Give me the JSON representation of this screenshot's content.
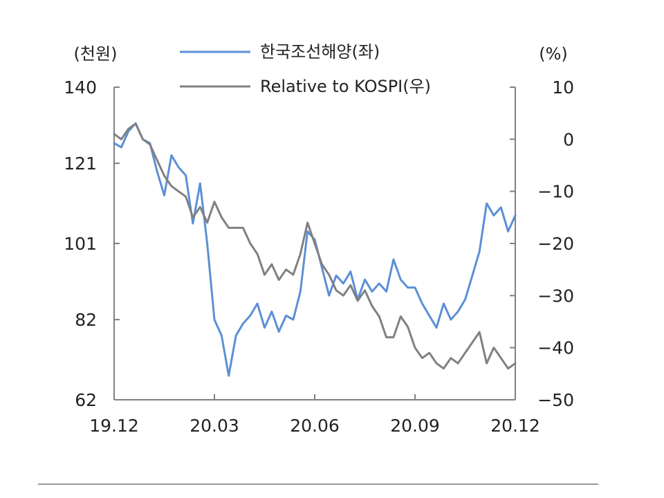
{
  "chart_data": {
    "type": "line",
    "title": "",
    "left_axis_unit": "(천원)",
    "right_axis_unit": "(%)",
    "left_ylim": [
      62,
      140
    ],
    "left_ticks": [
      "140",
      "121",
      "101",
      "82",
      "62"
    ],
    "left_tick_values": [
      140,
      121,
      101,
      82,
      62
    ],
    "right_ylim": [
      -50,
      10
    ],
    "right_ticks": [
      "10",
      "0",
      "-10",
      "-20",
      "-30",
      "-40",
      "-50"
    ],
    "right_tick_values": [
      10,
      0,
      -10,
      -20,
      -30,
      -40,
      -50
    ],
    "x_ticks": [
      "19.12",
      "20.03",
      "20.06",
      "20.09",
      "20.12"
    ],
    "legend_position": "top-center",
    "grid": false,
    "series": [
      {
        "name": "한국조선해양(좌)",
        "axis": "left",
        "color": "#5b8fd6",
        "x": [
          "19.12",
          "19.12",
          "19.12",
          "19.12",
          "20.01",
          "20.01",
          "20.01",
          "20.01",
          "20.01",
          "20.02",
          "20.02",
          "20.02",
          "20.02",
          "20.02",
          "20.03",
          "20.03",
          "20.03",
          "20.03",
          "20.03",
          "20.03",
          "20.04",
          "20.04",
          "20.04",
          "20.04",
          "20.04",
          "20.05",
          "20.05",
          "20.05",
          "20.05",
          "20.06",
          "20.06",
          "20.06",
          "20.06",
          "20.06",
          "20.07",
          "20.07",
          "20.07",
          "20.07",
          "20.08",
          "20.08",
          "20.08",
          "20.08",
          "20.09",
          "20.09",
          "20.09",
          "20.09",
          "20.10",
          "20.10",
          "20.10",
          "20.10",
          "20.11",
          "20.11",
          "20.11",
          "20.11",
          "20.11",
          "20.12",
          "20.12"
        ],
        "values": [
          126,
          125,
          129,
          131,
          127,
          126,
          119,
          113,
          123,
          120,
          118,
          106,
          116,
          101,
          82,
          78,
          68,
          78,
          81,
          83,
          86,
          80,
          84,
          79,
          83,
          82,
          89,
          104,
          102,
          95,
          88,
          93,
          91,
          94,
          87,
          92,
          89,
          91,
          89,
          97,
          92,
          90,
          90,
          86,
          83,
          80,
          86,
          82,
          84,
          87,
          93,
          99,
          111,
          108,
          110,
          104,
          108
        ]
      },
      {
        "name": "Relative to KOSPI(우)",
        "axis": "right",
        "color": "#808080",
        "x": [
          "19.12",
          "19.12",
          "19.12",
          "19.12",
          "20.01",
          "20.01",
          "20.01",
          "20.01",
          "20.01",
          "20.02",
          "20.02",
          "20.02",
          "20.02",
          "20.02",
          "20.03",
          "20.03",
          "20.03",
          "20.03",
          "20.03",
          "20.03",
          "20.04",
          "20.04",
          "20.04",
          "20.04",
          "20.04",
          "20.05",
          "20.05",
          "20.05",
          "20.05",
          "20.06",
          "20.06",
          "20.06",
          "20.06",
          "20.06",
          "20.07",
          "20.07",
          "20.07",
          "20.07",
          "20.08",
          "20.08",
          "20.08",
          "20.08",
          "20.09",
          "20.09",
          "20.09",
          "20.09",
          "20.10",
          "20.10",
          "20.10",
          "20.10",
          "20.11",
          "20.11",
          "20.11",
          "20.11",
          "20.11",
          "20.12",
          "20.12"
        ],
        "values": [
          1,
          0,
          2,
          3,
          0,
          -1,
          -4,
          -7,
          -9,
          -10,
          -11,
          -15,
          -13,
          -16,
          -12,
          -15,
          -17,
          -17,
          -17,
          -20,
          -22,
          -26,
          -24,
          -27,
          -25,
          -26,
          -22,
          -16,
          -20,
          -24,
          -26,
          -29,
          -30,
          -28,
          -31,
          -29,
          -32,
          -34,
          -38,
          -38,
          -34,
          -36,
          -40,
          -42,
          -41,
          -43,
          -44,
          -42,
          -43,
          -41,
          -39,
          -37,
          -43,
          -40,
          -42,
          -44,
          -43
        ]
      }
    ]
  }
}
